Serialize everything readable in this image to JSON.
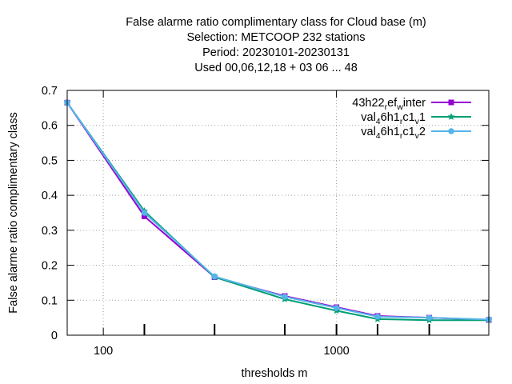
{
  "chart_data": {
    "type": "line",
    "title_lines": [
      "False alarme ratio complimentary class  for Cloud base (m)",
      "Selection: METCOOP    232 stations",
      "Period: 20230101-20230131",
      "Used  00,06,12,18  + 03 06 ... 48"
    ],
    "xlabel": "thresholds m",
    "ylabel": "False alarme ratio complimentary class",
    "x_scale": "log",
    "xlim": [
      70,
      4500
    ],
    "ylim": [
      0,
      0.7
    ],
    "x_ticks": [
      100,
      1000
    ],
    "x_tick_labels": [
      "100",
      "1000"
    ],
    "y_ticks": [
      0,
      0.1,
      0.2,
      0.3,
      0.4,
      0.5,
      0.6,
      0.7
    ],
    "y_tick_labels": [
      "0",
      "0.1",
      "0.2",
      "0.3",
      "0.4",
      "0.5",
      "0.6",
      "0.7"
    ],
    "grid": true,
    "legend_position": "top-right",
    "x": [
      70,
      150,
      300,
      600,
      1000,
      1500,
      2500,
      4500
    ],
    "series": [
      {
        "name": "43h22 ref winter",
        "color": "#9400d3",
        "marker": "square",
        "values": [
          0.665,
          0.34,
          0.166,
          0.112,
          0.08,
          0.055,
          0.05,
          0.044
        ]
      },
      {
        "name": "val 4 6h1 rc1 v1",
        "color": "#009e73",
        "marker": "star",
        "values": [
          0.665,
          0.355,
          0.166,
          0.103,
          0.07,
          0.046,
          0.043,
          0.043
        ]
      },
      {
        "name": "val 4 6h1 rc1 v2",
        "color": "#56b4e9",
        "marker": "circle",
        "values": [
          0.665,
          0.35,
          0.168,
          0.11,
          0.078,
          0.053,
          0.05,
          0.045
        ]
      }
    ],
    "legend_rich": [
      [
        {
          "t": "43h22"
        },
        {
          "t": "r",
          "sub": true
        },
        {
          "t": "ef"
        },
        {
          "t": "w",
          "sub": true
        },
        {
          "t": "inter"
        }
      ],
      [
        {
          "t": "val"
        },
        {
          "t": "4",
          "sub": true
        },
        {
          "t": "6h1"
        },
        {
          "t": "r",
          "sub": true
        },
        {
          "t": "c1"
        },
        {
          "t": "v",
          "sub": true
        },
        {
          "t": "1"
        }
      ],
      [
        {
          "t": "val"
        },
        {
          "t": "4",
          "sub": true
        },
        {
          "t": "6h1"
        },
        {
          "t": "r",
          "sub": true
        },
        {
          "t": "c1"
        },
        {
          "t": "v",
          "sub": true
        },
        {
          "t": "2"
        }
      ]
    ]
  }
}
